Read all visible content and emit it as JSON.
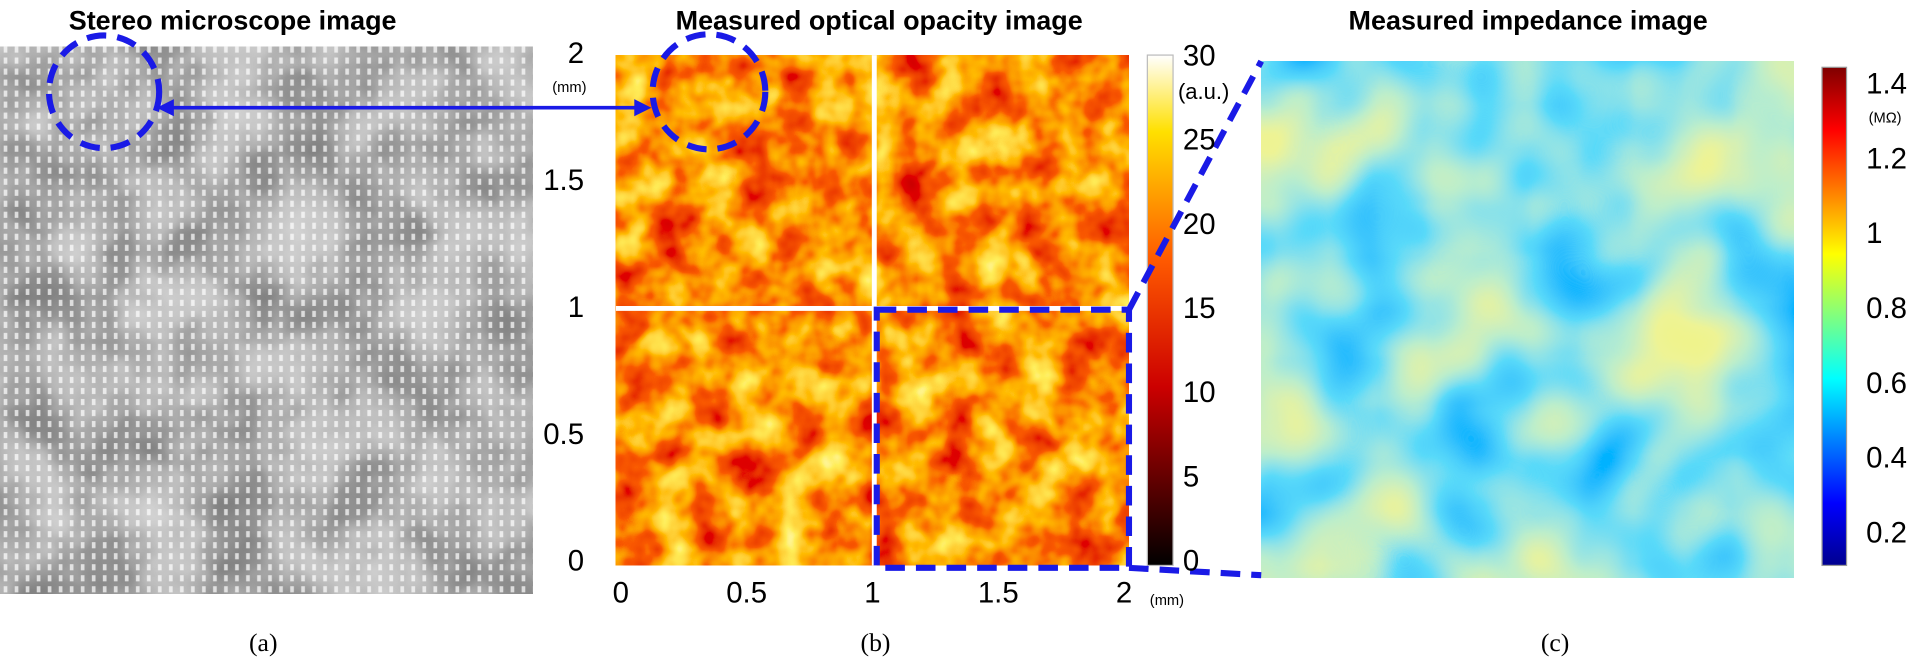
{
  "panels": [
    {
      "title": "Stereo microscope image",
      "label": "(a)"
    },
    {
      "title": "Measured optical opacity image",
      "label": "(b)",
      "yticks": [
        2,
        1.5,
        1,
        0.5,
        0
      ],
      "y_unit": "(mm)",
      "xticks": [
        0,
        0.5,
        1,
        1.5,
        2
      ],
      "x_unit": "(mm)",
      "colorbar_ticks": [
        30,
        25,
        20,
        15,
        10,
        5,
        0
      ],
      "colorbar_unit": "(a.u.)"
    },
    {
      "title": "Measured impedance image",
      "label": "(c)",
      "colorbar_ticks": [
        1.4,
        1.2,
        1,
        0.8,
        0.6,
        0.4,
        0.2
      ],
      "colorbar_unit": "(MΩ)"
    }
  ]
}
